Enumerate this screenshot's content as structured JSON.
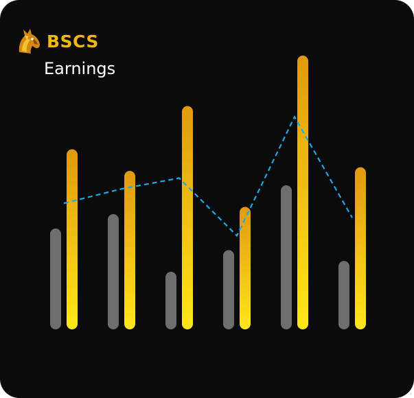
{
  "brand": {
    "name": "BSCS",
    "logo_icon": "horse-head-icon"
  },
  "card": {
    "title": "Earnings"
  },
  "colors": {
    "background": "#0b0b0b",
    "bar_gray": "#6e6e6e",
    "bar_gold_top": "#e09a10",
    "bar_gold_bottom": "#ffe61a",
    "line": "#1ea8e6"
  },
  "chart_data": {
    "type": "bar",
    "categories": [
      "",
      "",
      "",
      "",
      "",
      ""
    ],
    "series": [
      {
        "values": [
          28,
          32,
          16,
          22,
          40,
          19
        ]
      },
      {
        "values": [
          50,
          44,
          62,
          34,
          76,
          45
        ]
      }
    ],
    "line": {
      "style": "dashed",
      "values": [
        35,
        39,
        42,
        26,
        59,
        31
      ]
    },
    "ylim": [
      0,
      80
    ],
    "grid": false,
    "legend": "none"
  }
}
